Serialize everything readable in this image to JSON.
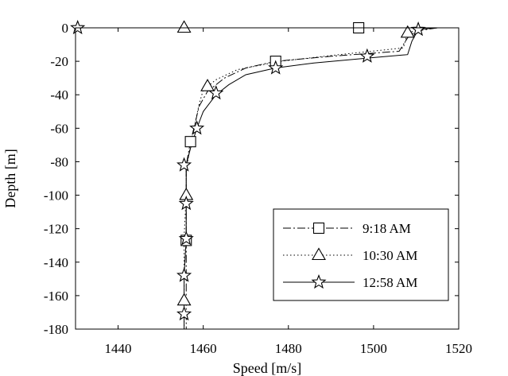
{
  "chart_data": {
    "type": "line",
    "title": "",
    "xlabel": "Speed [m/s]",
    "ylabel": "Depth [m]",
    "xlim": [
      1430,
      1520
    ],
    "ylim": [
      -180,
      0
    ],
    "xticks": [
      1440,
      1460,
      1480,
      1500,
      1520
    ],
    "yticks": [
      0,
      -20,
      -40,
      -60,
      -80,
      -100,
      -120,
      -140,
      -160,
      -180
    ],
    "grid": false,
    "legend_position": "bottom-right",
    "series": [
      {
        "name": "9:18 AM",
        "line_style": "dash-dot",
        "marker": "square",
        "color": "#000000",
        "points": [
          [
            1515,
            0
          ],
          [
            1510,
            -2
          ],
          [
            1508,
            -6
          ],
          [
            1506,
            -14
          ],
          [
            1490,
            -17
          ],
          [
            1477,
            -20
          ],
          [
            1470,
            -24
          ],
          [
            1465,
            -30
          ],
          [
            1461,
            -38
          ],
          [
            1459,
            -47
          ],
          [
            1458,
            -58
          ],
          [
            1457,
            -68
          ],
          [
            1456,
            -82
          ],
          [
            1456,
            -100
          ],
          [
            1456,
            -127
          ],
          [
            1456,
            -150
          ],
          [
            1456,
            -165
          ],
          [
            1456,
            -180
          ]
        ],
        "markers": [
          [
            1496.5,
            0
          ],
          [
            1477,
            -20
          ],
          [
            1457,
            -68
          ],
          [
            1456,
            -127
          ]
        ]
      },
      {
        "name": "10:30 AM",
        "line_style": "dotted",
        "marker": "triangle",
        "color": "#000000",
        "points": [
          [
            1515,
            0
          ],
          [
            1511,
            -1
          ],
          [
            1508,
            -3
          ],
          [
            1507,
            -12
          ],
          [
            1492,
            -16
          ],
          [
            1478,
            -20
          ],
          [
            1468,
            -25
          ],
          [
            1463,
            -31
          ],
          [
            1460,
            -37
          ],
          [
            1459,
            -46
          ],
          [
            1458,
            -58
          ],
          [
            1457,
            -70
          ],
          [
            1456,
            -85
          ],
          [
            1456,
            -100
          ],
          [
            1455.5,
            -125
          ],
          [
            1455.5,
            -150
          ],
          [
            1455.5,
            -163
          ],
          [
            1455.5,
            -180
          ]
        ],
        "markers": [
          [
            1455.5,
            0
          ],
          [
            1508,
            -3
          ],
          [
            1461,
            -35
          ],
          [
            1456,
            -100
          ],
          [
            1455.5,
            -163
          ]
        ]
      },
      {
        "name": "12:58 AM",
        "line_style": "solid",
        "marker": "star",
        "color": "#000000",
        "points": [
          [
            1515,
            0
          ],
          [
            1510.5,
            -1
          ],
          [
            1509,
            -8
          ],
          [
            1508,
            -16
          ],
          [
            1499,
            -18
          ],
          [
            1486,
            -21
          ],
          [
            1477,
            -24
          ],
          [
            1470,
            -28
          ],
          [
            1466,
            -34
          ],
          [
            1463,
            -40
          ],
          [
            1460,
            -50
          ],
          [
            1458.5,
            -60
          ],
          [
            1457,
            -72
          ],
          [
            1456,
            -82
          ],
          [
            1456,
            -105
          ],
          [
            1456,
            -126
          ],
          [
            1455.5,
            -148
          ],
          [
            1455.5,
            -171
          ],
          [
            1455.5,
            -180
          ]
        ],
        "markers": [
          [
            1430.5,
            0
          ],
          [
            1510.5,
            -1
          ],
          [
            1498.5,
            -17
          ],
          [
            1477,
            -24
          ],
          [
            1463,
            -39
          ],
          [
            1458.5,
            -60
          ],
          [
            1455.5,
            -82
          ],
          [
            1456,
            -105
          ],
          [
            1456,
            -126
          ],
          [
            1455.5,
            -148
          ],
          [
            1455.5,
            -171
          ]
        ]
      }
    ]
  }
}
